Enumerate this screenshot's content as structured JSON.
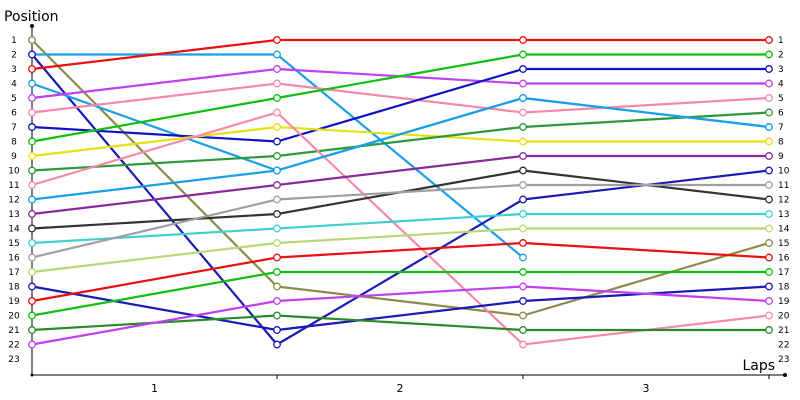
{
  "chart_data": {
    "type": "line",
    "title": "",
    "xlabel": "Laps",
    "ylabel": "Position",
    "x": [
      0,
      1,
      2,
      3
    ],
    "x_tick_labels": [
      "1",
      "2",
      "3"
    ],
    "y_tick_labels": [
      "1",
      "2",
      "3",
      "4",
      "5",
      "6",
      "7",
      "8",
      "9",
      "10",
      "11",
      "12",
      "13",
      "14",
      "15",
      "16",
      "17",
      "18",
      "19",
      "20",
      "21",
      "22",
      "23"
    ],
    "right_tick_labels": [
      "1",
      "2",
      "3",
      "4",
      "5",
      "6",
      "7",
      "8",
      "9",
      "10",
      "11",
      "12",
      "13",
      "14",
      "15",
      "16",
      "17",
      "18",
      "19",
      "20",
      "21",
      "22",
      "23"
    ],
    "ylim": [
      1,
      23
    ],
    "y_inverted": true,
    "grid": false,
    "series": [
      {
        "color": "#8b8b4a",
        "values": [
          1,
          18,
          20,
          15
        ]
      },
      {
        "color": "#1a9fe8",
        "values": [
          2,
          2,
          16,
          null
        ]
      },
      {
        "color": "#1a1ab4",
        "values": [
          2,
          22,
          12,
          10
        ]
      },
      {
        "color": "#e81010",
        "values": [
          3,
          1,
          1,
          1
        ]
      },
      {
        "color": "#1a9fe8",
        "values": [
          4,
          10,
          5,
          7
        ]
      },
      {
        "color": "#c040f0",
        "values": [
          5,
          3,
          4,
          4
        ]
      },
      {
        "color": "#f58aa8",
        "values": [
          6,
          4,
          6,
          5
        ]
      },
      {
        "color": "#1010c8",
        "values": [
          7,
          8,
          3,
          3
        ]
      },
      {
        "color": "#10c010",
        "values": [
          8,
          5,
          2,
          2
        ]
      },
      {
        "color": "#e8e010",
        "values": [
          9,
          7,
          8,
          8
        ]
      },
      {
        "color": "#2a9a3a",
        "values": [
          10,
          9,
          7,
          6
        ]
      },
      {
        "color": "#f58aa8",
        "values": [
          11,
          6,
          22,
          20
        ]
      },
      {
        "color": "#1a9fe8",
        "values": [
          12,
          10,
          5,
          7
        ]
      },
      {
        "color": "#8a2a9a",
        "values": [
          13,
          11,
          9,
          9
        ]
      },
      {
        "color": "#333333",
        "values": [
          14,
          13,
          10,
          12
        ]
      },
      {
        "color": "#40d0d0",
        "values": [
          15,
          14,
          13,
          13
        ]
      },
      {
        "color": "#a0a0a0",
        "values": [
          16,
          12,
          11,
          11
        ]
      },
      {
        "color": "#b8d878",
        "values": [
          17,
          15,
          14,
          14
        ]
      },
      {
        "color": "#1a1ab4",
        "values": [
          18,
          21,
          19,
          18
        ]
      },
      {
        "color": "#e81010",
        "values": [
          19,
          16,
          15,
          16
        ]
      },
      {
        "color": "#10c010",
        "values": [
          20,
          17,
          17,
          17
        ]
      },
      {
        "color": "#2a8a2a",
        "values": [
          21,
          20,
          21,
          21
        ]
      },
      {
        "color": "#c040f0",
        "values": [
          22,
          19,
          18,
          19
        ]
      }
    ]
  }
}
